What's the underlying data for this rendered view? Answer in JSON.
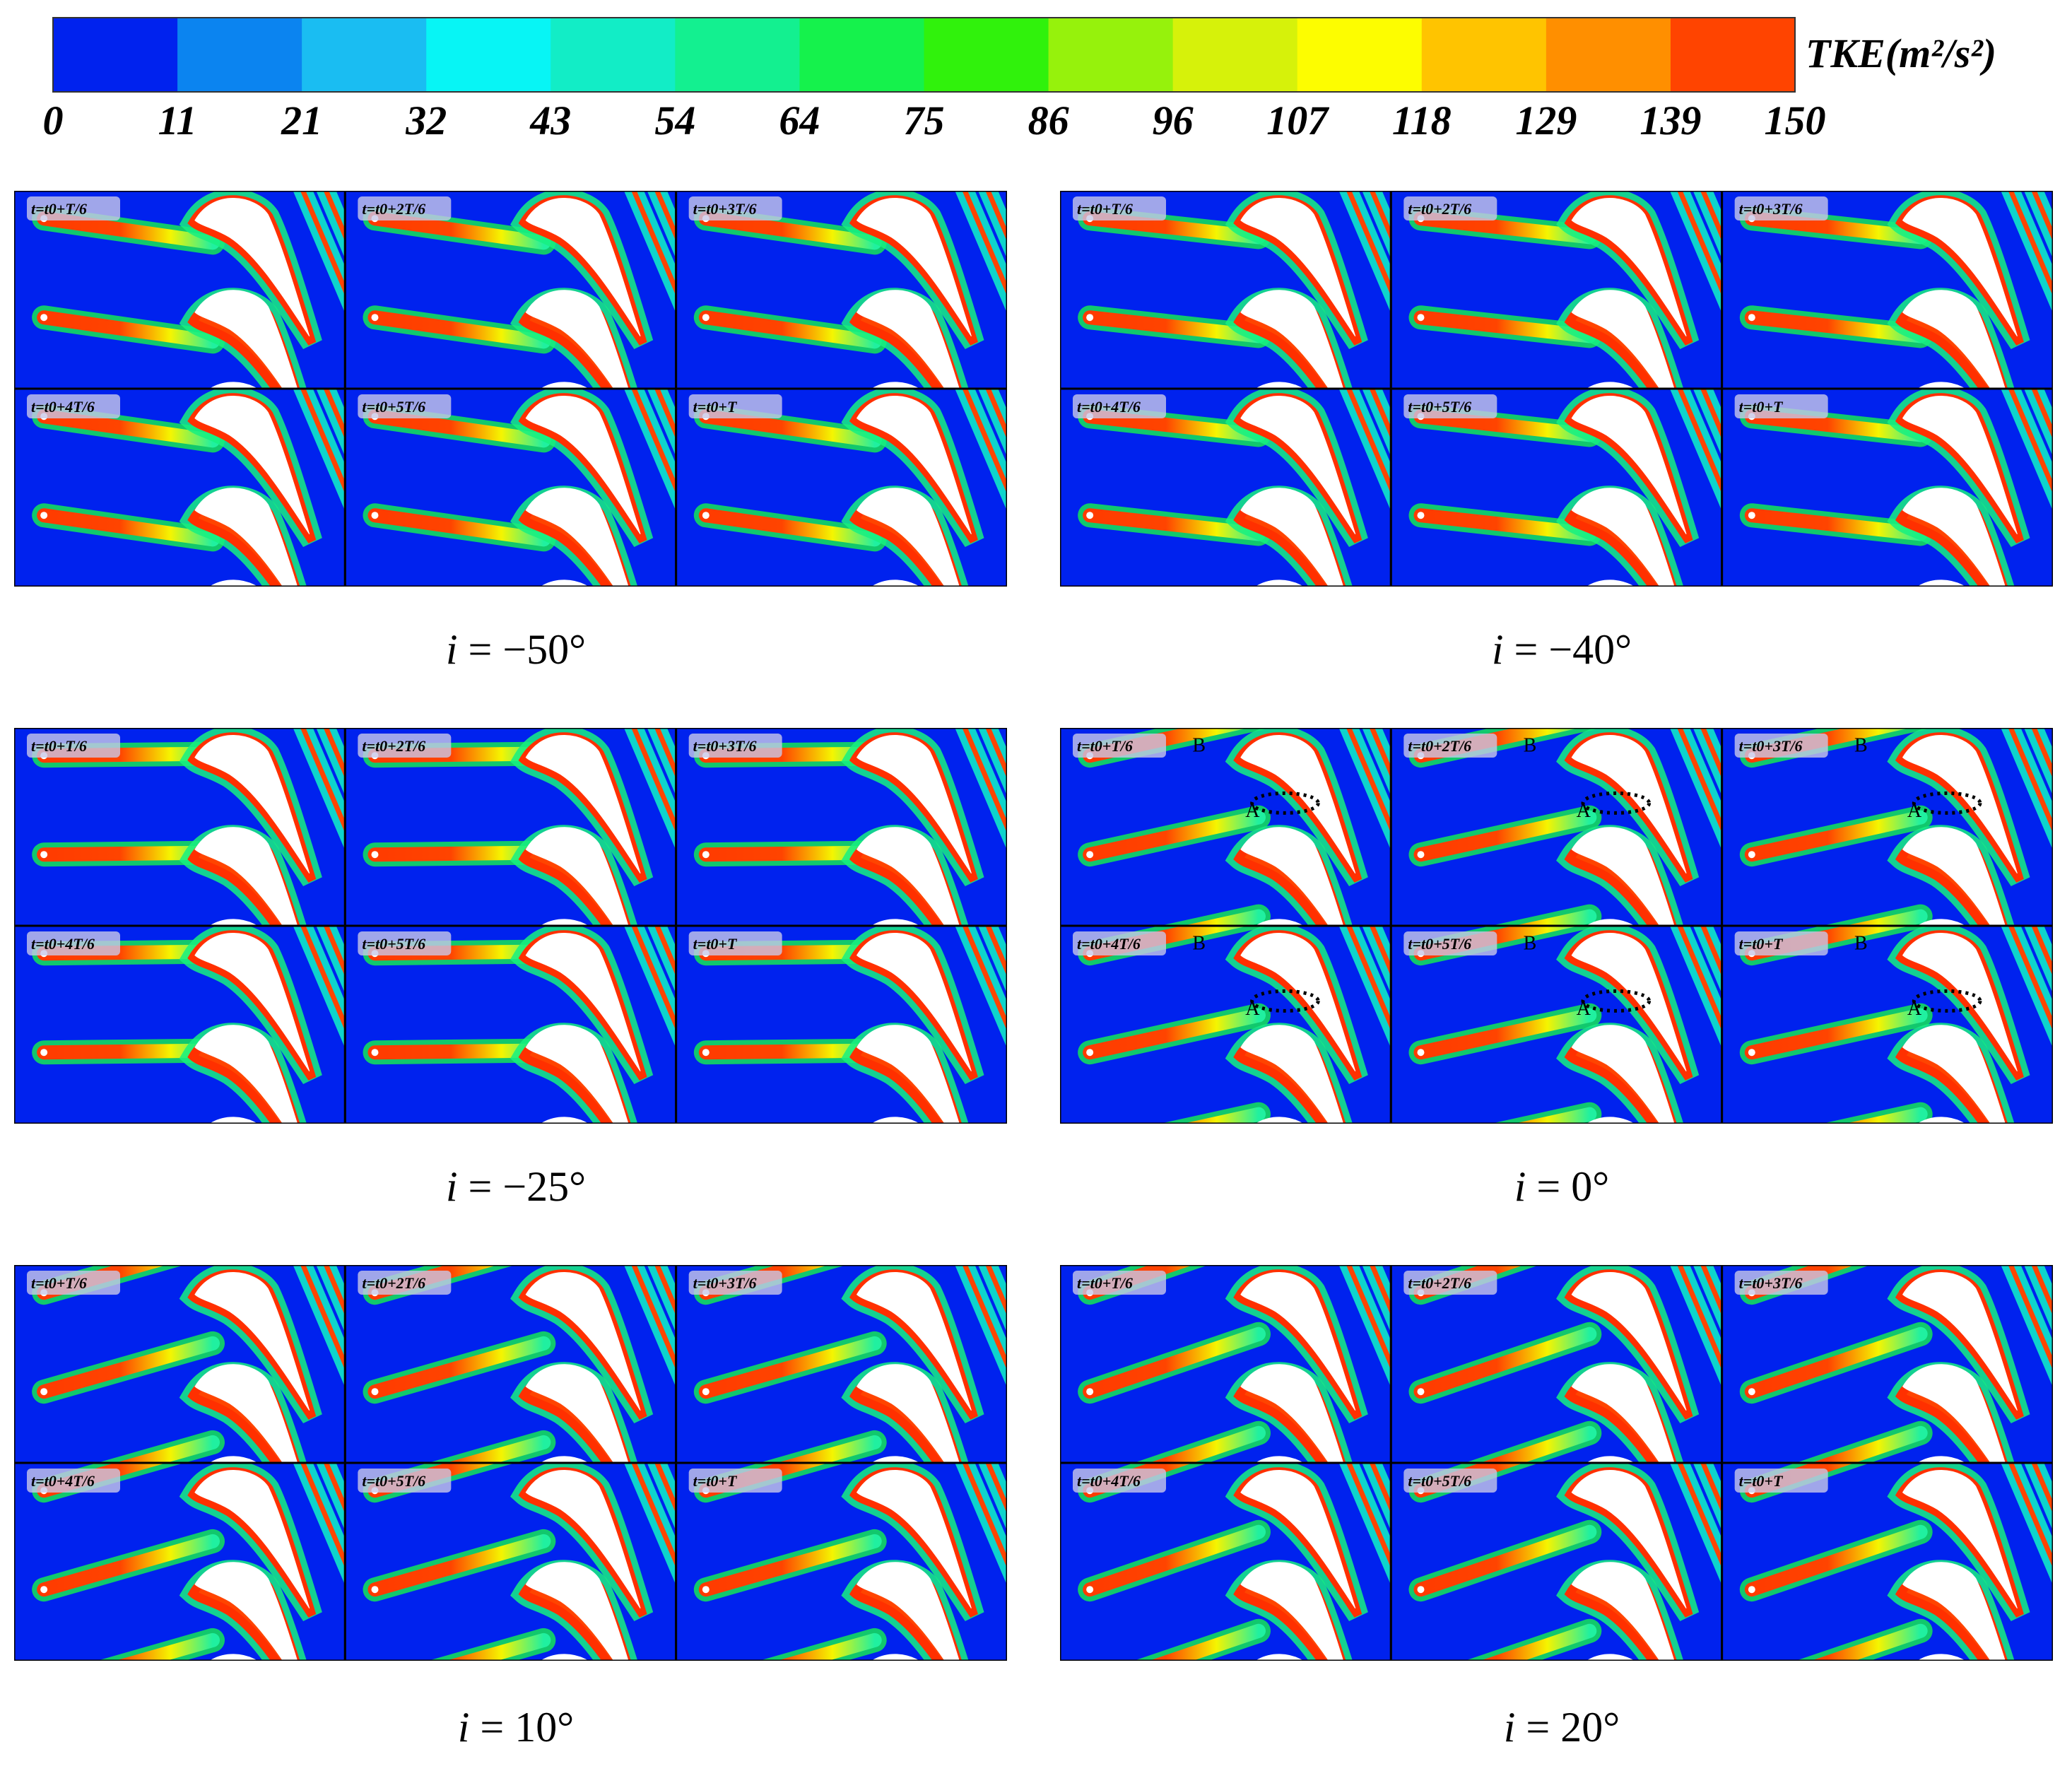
{
  "colorbar": {
    "title": "TKE(m²/s²)",
    "colors": [
      "#0022ee",
      "#0b84f0",
      "#1abdf2",
      "#07f5f5",
      "#12edc6",
      "#13f090",
      "#15f24c",
      "#30f20c",
      "#96f20c",
      "#d6f20a",
      "#fdfd00",
      "#ffc400",
      "#ff8f00",
      "#ff4400"
    ],
    "tick_labels": [
      "0",
      "11",
      "21",
      "32",
      "43",
      "54",
      "64",
      "75",
      "86",
      "96",
      "107",
      "118",
      "129",
      "139",
      "150"
    ]
  },
  "frame_labels": [
    "t=t0+T/6",
    "t=t0+2T/6",
    "t=t0+3T/6",
    "t=t0+4T/6",
    "t=t0+5T/6",
    "t=t0+T"
  ],
  "groups": [
    {
      "caption_var": "i",
      "caption_value": "= −50°"
    },
    {
      "caption_var": "i",
      "caption_value": "= −40°"
    },
    {
      "caption_var": "i",
      "caption_value": "= −25°"
    },
    {
      "caption_var": "i",
      "caption_value": "= 0°"
    },
    {
      "caption_var": "i",
      "caption_value": "= 10°"
    },
    {
      "caption_var": "i",
      "caption_value": "= 20°"
    }
  ],
  "markers": {
    "a": "A",
    "b": "B"
  }
}
